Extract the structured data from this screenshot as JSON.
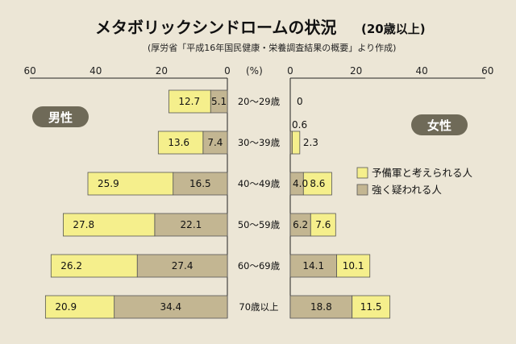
{
  "chart_data": {
    "type": "bar",
    "orientation": "horizontal-diverging",
    "title": "メタボリックシンドロームの状況",
    "title_suffix": "(20歳以上)",
    "subtitle": "(厚労省「平成16年国民健康・栄養調査結果の概要」より作成)",
    "unit_label": "(%)",
    "categories": [
      "20～29歳",
      "30～39歳",
      "40～49歳",
      "50～59歳",
      "60～69歳",
      "70歳以上"
    ],
    "axis_ticks": [
      "60",
      "40",
      "20",
      "0"
    ],
    "axis_ticks_right": [
      "0",
      "20",
      "40",
      "60"
    ],
    "xlim": [
      0,
      60
    ],
    "panels": [
      {
        "name": "男性",
        "series": [
          {
            "name": "強く疑われる人",
            "values": [
              "5.1",
              "7.4",
              "16.5",
              "22.1",
              "27.4",
              "34.4"
            ]
          },
          {
            "name": "予備軍と考えられる人",
            "values": [
              "12.7",
              "13.6",
              "25.9",
              "27.8",
              "26.2",
              "20.9"
            ]
          }
        ]
      },
      {
        "name": "女性",
        "series": [
          {
            "name": "強く疑われる人",
            "values": [
              "0",
              "0.6",
              "4.0",
              "6.2",
              "14.1",
              "18.8"
            ]
          },
          {
            "name": "予備軍と考えられる人",
            "values": [
              "0",
              "2.3",
              "8.6",
              "7.6",
              "10.1",
              "11.5"
            ]
          }
        ]
      }
    ],
    "legend": [
      {
        "label": "予備軍と考えられる人",
        "color": "#f5ef8c"
      },
      {
        "label": "強く疑われる人",
        "color": "#c3b692"
      }
    ],
    "legend_position": "right"
  },
  "colors": {
    "pre": "#f5ef8c",
    "strong": "#c3b692",
    "badge": "#6f6a58",
    "axis": "#222222"
  }
}
